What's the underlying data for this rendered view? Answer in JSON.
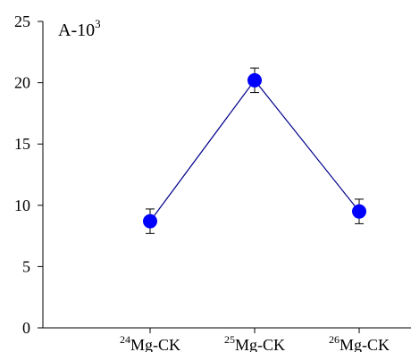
{
  "chart_data": {
    "type": "line",
    "title": "",
    "ylabel": "A-10",
    "ylabel_superscript": "3",
    "xlabel": "",
    "categories": [
      {
        "sup": "24",
        "label": "Mg-CK"
      },
      {
        "sup": "25",
        "label": "Mg-CK"
      },
      {
        "sup": "26",
        "label": "Mg-CK"
      }
    ],
    "series": [
      {
        "values": [
          8.7,
          20.2,
          9.5
        ],
        "errors": [
          1.0,
          1.0,
          1.0
        ],
        "color": "#0000ff",
        "line_color": "#00008b"
      }
    ],
    "ylim": [
      0,
      25
    ],
    "yticks": [
      "0",
      "5",
      "10",
      "15",
      "20",
      "25"
    ],
    "grid": false,
    "legend": "none"
  }
}
